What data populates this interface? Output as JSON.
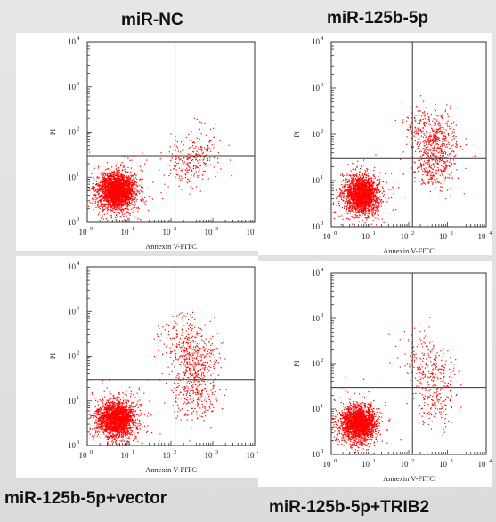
{
  "chart_data": [
    {
      "type": "scatter",
      "title": "miR-NC",
      "xlabel": "Annexin V-FITC",
      "ylabel": "PI",
      "xscale": "log",
      "yscale": "log",
      "xlim": [
        1,
        10000
      ],
      "ylim": [
        1,
        10000
      ],
      "x_ticks": [
        "10",
        "10",
        "10",
        "10",
        "10"
      ],
      "x_tick_exponents": [
        "0",
        "1",
        "2",
        "3",
        "4"
      ],
      "y_ticks": [
        "10",
        "10",
        "10",
        "10",
        "10"
      ],
      "y_tick_exponents": [
        "0",
        "1",
        "2",
        "3",
        "4"
      ],
      "quadrant_gate": {
        "x": 125,
        "y": 30
      },
      "series": [
        {
          "color": "#ff0000",
          "clusters": [
            {
              "x": 5,
              "y": 5,
              "n": 2600
            },
            {
              "x": 450,
              "y": 50,
              "n": 60
            },
            {
              "x": 500,
              "y": 25,
              "n": 70
            },
            {
              "x": 200,
              "y": 20,
              "n": 150
            }
          ]
        }
      ]
    },
    {
      "type": "scatter",
      "title": "miR-125b-5p",
      "xlabel": "Annexin V-FITC",
      "ylabel": "PI",
      "xscale": "log",
      "yscale": "log",
      "xlim": [
        1,
        10000
      ],
      "ylim": [
        1,
        10000
      ],
      "x_ticks": [
        "10",
        "10",
        "10",
        "10",
        "10"
      ],
      "x_tick_exponents": [
        "0",
        "1",
        "2",
        "3",
        "4"
      ],
      "y_ticks": [
        "10",
        "10",
        "10",
        "10",
        "10"
      ],
      "y_tick_exponents": [
        "0",
        "1",
        "2",
        "3",
        "4"
      ],
      "quadrant_gate": {
        "x": 125,
        "y": 30
      },
      "series": [
        {
          "color": "#ff0000",
          "clusters": [
            {
              "x": 6,
              "y": 5,
              "n": 2200
            },
            {
              "x": 550,
              "y": 70,
              "n": 320
            },
            {
              "x": 450,
              "y": 20,
              "n": 260
            },
            {
              "x": 200,
              "y": 150,
              "n": 150
            }
          ]
        }
      ]
    },
    {
      "type": "scatter",
      "title": "miR-125b-5p+vector",
      "xlabel": "Annexin V-FITC",
      "ylabel": "PI",
      "xscale": "log",
      "yscale": "log",
      "xlim": [
        1,
        10000
      ],
      "ylim": [
        1,
        10000
      ],
      "x_ticks": [
        "10",
        "10",
        "10",
        "10",
        "10"
      ],
      "x_tick_exponents": [
        "0",
        "1",
        "2",
        "3",
        "4"
      ],
      "y_ticks": [
        "10",
        "10",
        "10",
        "10",
        "10"
      ],
      "y_tick_exponents": [
        "0",
        "1",
        "2",
        "3",
        "4"
      ],
      "quadrant_gate": {
        "x": 125,
        "y": 30
      },
      "series": [
        {
          "color": "#ff0000",
          "clusters": [
            {
              "x": 5,
              "y": 4,
              "n": 2300
            },
            {
              "x": 400,
              "y": 80,
              "n": 300
            },
            {
              "x": 350,
              "y": 15,
              "n": 260
            },
            {
              "x": 200,
              "y": 250,
              "n": 160
            }
          ]
        }
      ]
    },
    {
      "type": "scatter",
      "title": "miR-125b-5p+TRIB2",
      "xlabel": "Annexin V-FITC",
      "ylabel": "PI",
      "xscale": "log",
      "yscale": "log",
      "xlim": [
        1,
        10000
      ],
      "ylim": [
        1,
        10000
      ],
      "x_ticks": [
        "10",
        "10",
        "10",
        "10",
        "10"
      ],
      "x_tick_exponents": [
        "0",
        "1",
        "2",
        "3",
        "4"
      ],
      "y_ticks": [
        "10",
        "10",
        "10",
        "10",
        "10"
      ],
      "y_tick_exponents": [
        "0",
        "1",
        "2",
        "3",
        "4"
      ],
      "quadrant_gate": {
        "x": 125,
        "y": 30
      },
      "series": [
        {
          "color": "#ff0000",
          "clusters": [
            {
              "x": 5,
              "y": 5,
              "n": 2300
            },
            {
              "x": 500,
              "y": 60,
              "n": 120
            },
            {
              "x": 450,
              "y": 15,
              "n": 160
            },
            {
              "x": 200,
              "y": 150,
              "n": 110
            }
          ]
        }
      ]
    }
  ]
}
